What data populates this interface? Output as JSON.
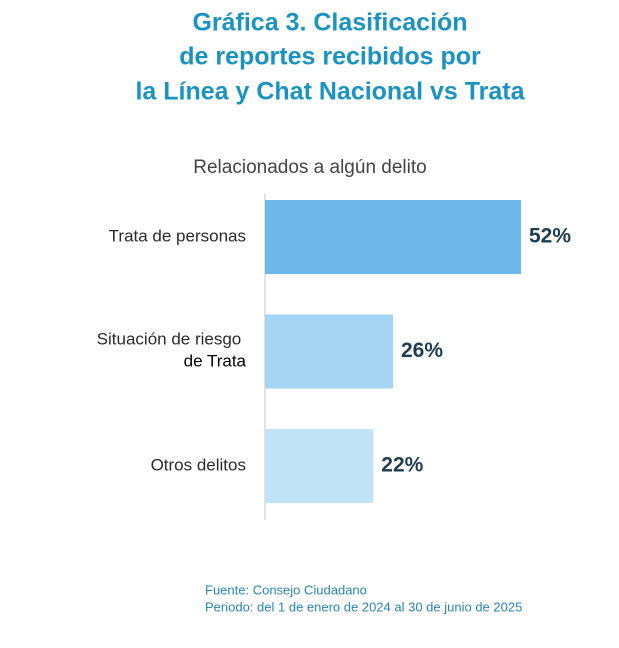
{
  "chart_data": {
    "type": "bar",
    "orientation": "horizontal",
    "title": [
      "Gráfica 3. Clasificación",
      "de reportes recibidos por",
      "la Línea y Chat Nacional vs Trata"
    ],
    "subtitle": "Relacionados a algún delito",
    "categories": [
      "Trata de personas",
      "Situación de riesgo de Trata",
      "Otros delitos"
    ],
    "values": [
      52,
      26,
      22
    ],
    "value_labels": [
      "52%",
      "26%",
      "22%"
    ],
    "colors": [
      "#6cb9e9",
      "#a5d5f2",
      "#c2e2f6"
    ],
    "source": [
      "Fuente: Consejo Ciudadano",
      "Periodo: del 1 de enero de 2024 al 30 de junio de 2025"
    ]
  }
}
